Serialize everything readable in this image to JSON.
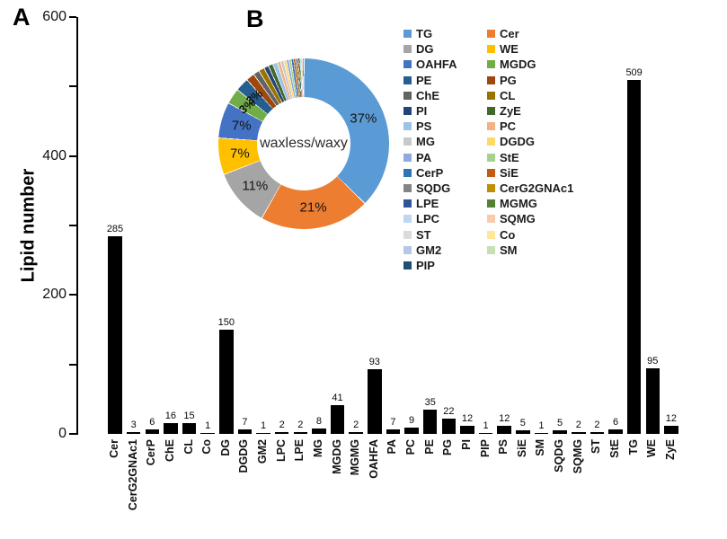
{
  "panels": {
    "a_label": "A",
    "b_label": "B"
  },
  "chart_data": [
    {
      "id": "lipid-number-bar-chart",
      "type": "bar",
      "title": "",
      "xlabel": "",
      "ylabel": "Lipid number",
      "ylim": [
        0,
        600
      ],
      "yticks_major": [
        0,
        200,
        400,
        600
      ],
      "yticks_minor": [
        100,
        300,
        500
      ],
      "grid": false,
      "bar_color": "#000000",
      "value_labels_shown": true,
      "categories": [
        "Cer",
        "CerG2GNAc1",
        "CerP",
        "ChE",
        "CL",
        "Co",
        "DG",
        "DGDG",
        "GM2",
        "LPC",
        "LPE",
        "MG",
        "MGDG",
        "MGMG",
        "OAHFA",
        "PA",
        "PC",
        "PE",
        "PG",
        "PI",
        "PIP",
        "PS",
        "SiE",
        "SM",
        "SQDG",
        "SQMG",
        "ST",
        "StE",
        "TG",
        "WE",
        "ZyE"
      ],
      "values": [
        285,
        3,
        6,
        16,
        15,
        1,
        150,
        7,
        1,
        2,
        2,
        8,
        41,
        2,
        93,
        7,
        9,
        35,
        22,
        12,
        1,
        12,
        5,
        1,
        5,
        2,
        2,
        6,
        509,
        95,
        12
      ]
    },
    {
      "id": "lipid-class-donut-chart",
      "type": "pie",
      "subtype": "donut",
      "center_label": "waxless/waxy",
      "direction": "clockwise",
      "start_angle_deg": 0,
      "legend_position": "right",
      "slices": [
        {
          "name": "TG",
          "value": 509,
          "pct_label": "37%",
          "color": "#5B9BD5"
        },
        {
          "name": "Cer",
          "value": 285,
          "pct_label": "21%",
          "color": "#ED7D31"
        },
        {
          "name": "DG",
          "value": 150,
          "pct_label": "11%",
          "color": "#A5A5A5"
        },
        {
          "name": "WE",
          "value": 95,
          "pct_label": "7%",
          "color": "#FFC000"
        },
        {
          "name": "OAHFA",
          "value": 93,
          "pct_label": "7%",
          "color": "#4472C4"
        },
        {
          "name": "MGDG",
          "value": 41,
          "pct_label": "3%",
          "color": "#70AD47"
        },
        {
          "name": "PE",
          "value": 35,
          "pct_label": "3%",
          "color": "#255E91"
        },
        {
          "name": "PG",
          "value": 22,
          "pct_label": "",
          "color": "#9E480E"
        },
        {
          "name": "ChE",
          "value": 16,
          "pct_label": "",
          "color": "#636363"
        },
        {
          "name": "CL",
          "value": 15,
          "pct_label": "",
          "color": "#997300"
        },
        {
          "name": "PI",
          "value": 12,
          "pct_label": "",
          "color": "#264478"
        },
        {
          "name": "ZyE",
          "value": 12,
          "pct_label": "",
          "color": "#43682B"
        },
        {
          "name": "PS",
          "value": 12,
          "pct_label": "",
          "color": "#9DC3E6"
        },
        {
          "name": "PC",
          "value": 9,
          "pct_label": "",
          "color": "#F4B183"
        },
        {
          "name": "MG",
          "value": 8,
          "pct_label": "",
          "color": "#C9C9C9"
        },
        {
          "name": "DGDG",
          "value": 7,
          "pct_label": "",
          "color": "#FFD966"
        },
        {
          "name": "PA",
          "value": 7,
          "pct_label": "",
          "color": "#8FAADC"
        },
        {
          "name": "StE",
          "value": 6,
          "pct_label": "",
          "color": "#A9D18E"
        },
        {
          "name": "CerP",
          "value": 6,
          "pct_label": "",
          "color": "#2E75B6"
        },
        {
          "name": "SiE",
          "value": 5,
          "pct_label": "",
          "color": "#C55A11"
        },
        {
          "name": "SQDG",
          "value": 5,
          "pct_label": "",
          "color": "#848484"
        },
        {
          "name": "CerG2GNAc1",
          "value": 3,
          "pct_label": "",
          "color": "#BF8F00"
        },
        {
          "name": "LPE",
          "value": 2,
          "pct_label": "",
          "color": "#2F5597"
        },
        {
          "name": "MGMG",
          "value": 2,
          "pct_label": "",
          "color": "#548235"
        },
        {
          "name": "LPC",
          "value": 2,
          "pct_label": "",
          "color": "#BDD7EE"
        },
        {
          "name": "SQMG",
          "value": 2,
          "pct_label": "",
          "color": "#F8CBAD"
        },
        {
          "name": "ST",
          "value": 2,
          "pct_label": "",
          "color": "#DBDBDB"
        },
        {
          "name": "Co",
          "value": 1,
          "pct_label": "",
          "color": "#FFE699"
        },
        {
          "name": "GM2",
          "value": 1,
          "pct_label": "",
          "color": "#B4C7E7"
        },
        {
          "name": "SM",
          "value": 1,
          "pct_label": "",
          "color": "#C5E0B4"
        },
        {
          "name": "PIP",
          "value": 1,
          "pct_label": "",
          "color": "#1F4E79"
        }
      ],
      "legend_columns": [
        [
          "TG",
          "DG",
          "OAHFA",
          "PE",
          "ChE",
          "PI",
          "PS",
          "MG",
          "PA",
          "CerP",
          "SQDG",
          "LPE",
          "LPC",
          "ST",
          "GM2",
          "PIP"
        ],
        [
          "Cer",
          "WE",
          "MGDG",
          "PG",
          "CL",
          "ZyE",
          "PC",
          "DGDG",
          "StE",
          "SiE",
          "CerG2GNAc1",
          "MGMG",
          "SQMG",
          "Co",
          "SM"
        ]
      ]
    }
  ]
}
